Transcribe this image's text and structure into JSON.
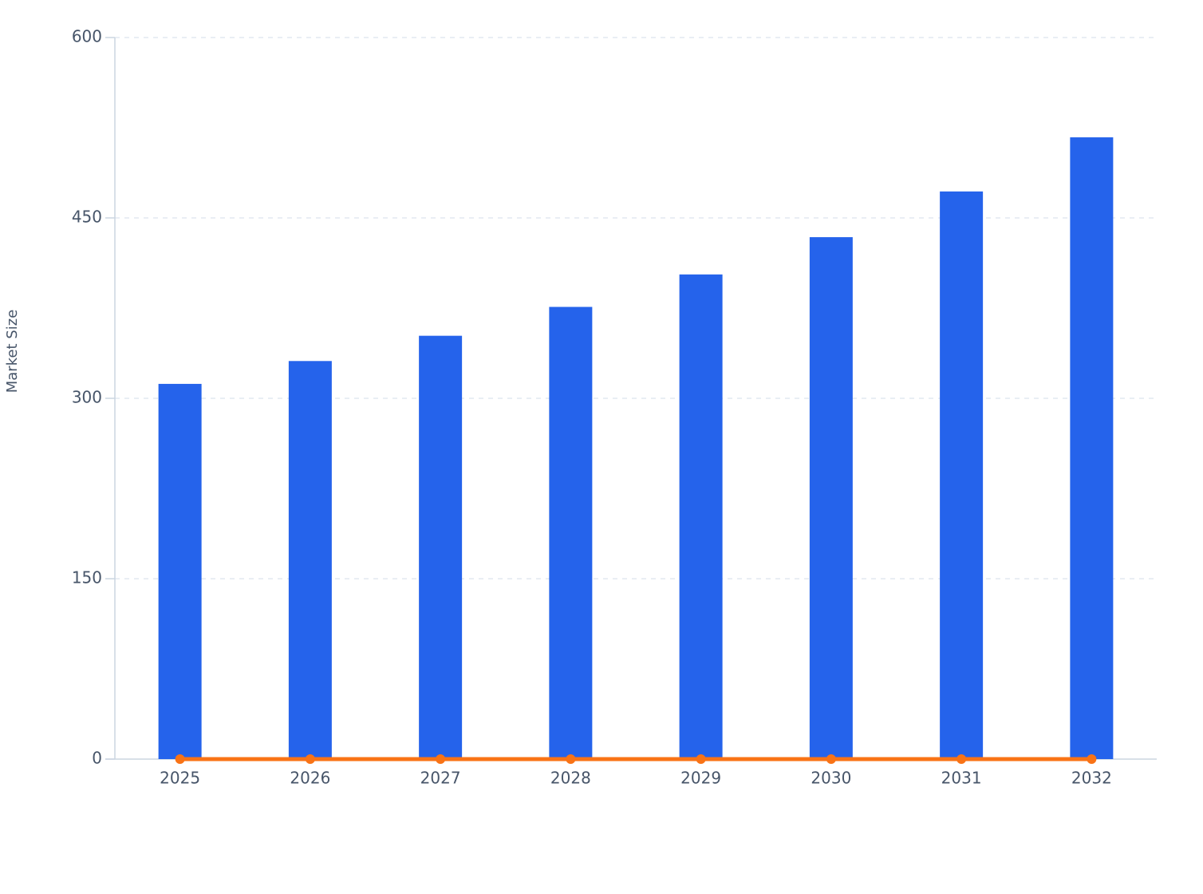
{
  "chart_data": {
    "type": "bar",
    "y_label": "Market Size",
    "categories": [
      "2025",
      "2026",
      "2027",
      "2028",
      "2029",
      "2030",
      "2031",
      "2032"
    ],
    "series": [
      {
        "type": "bar",
        "color": "#2563eb",
        "values": [
          312,
          331,
          352,
          376,
          403,
          434,
          472,
          517
        ]
      },
      {
        "type": "line",
        "color": "#f97316",
        "values": [
          0,
          0,
          0,
          0,
          0,
          0,
          0,
          0
        ]
      }
    ],
    "ylim": [
      0,
      600
    ],
    "yticks": [
      0,
      150,
      300,
      450,
      600
    ],
    "grid": true
  }
}
